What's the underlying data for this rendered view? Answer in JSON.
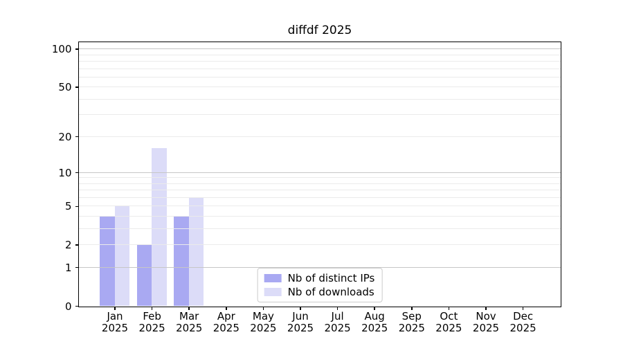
{
  "chart_data": {
    "type": "bar",
    "title": "diffdf 2025",
    "x_categories_months": [
      "Jan",
      "Feb",
      "Mar",
      "Apr",
      "May",
      "Jun",
      "Jul",
      "Aug",
      "Sep",
      "Oct",
      "Nov",
      "Dec"
    ],
    "x_year": "2025",
    "series": [
      {
        "name": "Nb of distinct IPs",
        "color": "#a9a9f2",
        "values": [
          4,
          2,
          4,
          0,
          0,
          0,
          0,
          0,
          0,
          0,
          0,
          0
        ]
      },
      {
        "name": "Nb of downloads",
        "color": "#dcdcf8",
        "values": [
          5,
          16,
          6,
          0,
          0,
          0,
          0,
          0,
          0,
          0,
          0,
          0
        ]
      }
    ],
    "yscale": "log1p",
    "ylim": [
      0,
      113
    ],
    "y_major_ticks": [
      0,
      1,
      2,
      5,
      10,
      20,
      50,
      100
    ],
    "y_minor_gridlines": [
      3,
      4,
      6,
      7,
      8,
      9,
      30,
      40,
      60,
      70,
      80,
      90
    ],
    "y_emphasized_gridlines": [
      1,
      10,
      100
    ],
    "grid": true,
    "legend_position": "lower center",
    "colors": {
      "grid_major": "#c6c6c6",
      "grid_minor": "#ebebeb",
      "axis_frame": "#000000",
      "background": "#ffffff",
      "legend_border": "#cccccc"
    }
  }
}
